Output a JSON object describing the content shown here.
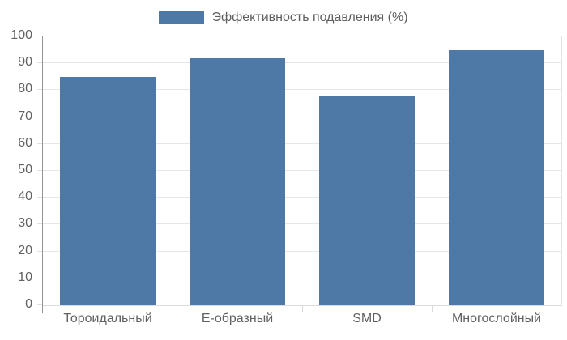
{
  "legend": {
    "label": "Эффективность подавления (%)",
    "swatch_color": "#4e79a7",
    "text_color": "#5e5e5e"
  },
  "chart_data": {
    "type": "bar",
    "title": "",
    "categories": [
      "Тороидальный",
      "Е-образный",
      "SMD",
      "Многослойный"
    ],
    "values": [
      85,
      92,
      78,
      95
    ],
    "series_name": "Эффективность подавления (%)",
    "xlabel": "",
    "ylabel": "",
    "ylim": [
      0,
      100
    ],
    "yticks": [
      0,
      10,
      20,
      30,
      40,
      50,
      60,
      70,
      80,
      90,
      100
    ],
    "grid": true,
    "legend_position": "top",
    "bar_color": "#4e79a7",
    "grid_color": "#e6e6e6",
    "axis_line_color": "#949494",
    "tick_label_color": "#616161",
    "background": "#ffffff"
  }
}
